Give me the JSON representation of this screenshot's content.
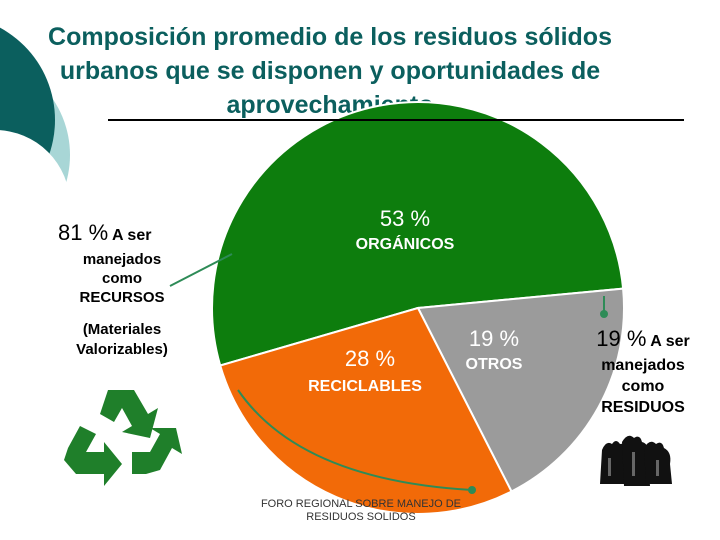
{
  "title": "Composición promedio de los residuos sólidos urbanos que se disponen y oportunidades de aprovechamiento",
  "left_group": {
    "percent": "81 %",
    "suffix": "A ser",
    "lines": [
      "manejados",
      "como",
      "RECURSOS"
    ],
    "note": "(Materiales Valorizables)"
  },
  "right_group": {
    "percent": "19 %",
    "suffix": "A ser",
    "lines": [
      "manejados",
      "como",
      "RESIDUOS"
    ]
  },
  "source": "FORO REGIONAL SOBRE MANEJO DE RESIDUOS SOLIDOS",
  "icons": {
    "recycle": "recycle-icon",
    "bags": "trash-bags-icon"
  },
  "chart_data": {
    "type": "pie",
    "slices": [
      {
        "label": "ORGÁNICOS",
        "value": 53,
        "value_label": "53 %",
        "color": "#0d7d0d"
      },
      {
        "label": "OTROS",
        "value": 19,
        "value_label": "19 %",
        "color": "#9b9b9b"
      },
      {
        "label": "RECICLABLES",
        "value": 28,
        "value_label": "28 %",
        "color": "#f26a08"
      }
    ]
  }
}
